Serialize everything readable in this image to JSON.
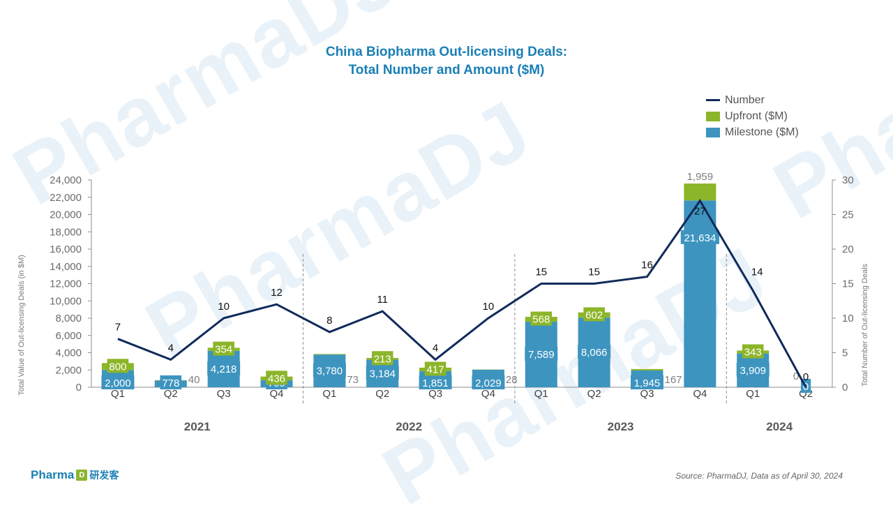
{
  "watermark": "PharmaDJ",
  "title": {
    "line1": "China Biopharma Out-licensing Deals:",
    "line2": "Total Number and Amount ($M)"
  },
  "legend": {
    "number": "Number",
    "upfront": "Upfront ($M)",
    "milestone": "Milestone ($M)"
  },
  "logo": {
    "text": "Pharma",
    "mark": "D",
    "chinese": "研发客"
  },
  "source": "Source: PharmaDJ, Data as of April 30, 2024",
  "colors": {
    "milestone": "#3d94bf",
    "upfront": "#8db52a",
    "number_line": "#102a5a",
    "title": "#1a7fb5"
  },
  "chart_data": {
    "type": "bar",
    "title": "China Biopharma Out-licensing Deals: Total Number and Amount ($M)",
    "ylabel_left": "Total Value of Out-licensing Deals (in $M)",
    "ylabel_right": "Total Number of Out-licensing Deals",
    "ylim_left": [
      0,
      24000
    ],
    "yticks_left": [
      "0",
      "2,000",
      "4,000",
      "6,000",
      "8,000",
      "10,000",
      "12,000",
      "14,000",
      "16,000",
      "18,000",
      "20,000",
      "22,000",
      "24,000"
    ],
    "ylim_right": [
      0,
      30
    ],
    "yticks_right": [
      "0",
      "5",
      "10",
      "15",
      "20",
      "25",
      "30"
    ],
    "categories": [
      "Q1",
      "Q2",
      "Q3",
      "Q4",
      "Q1",
      "Q2",
      "Q3",
      "Q4",
      "Q1",
      "Q2",
      "Q3",
      "Q4",
      "Q1",
      "Q2"
    ],
    "years": [
      {
        "label": "2021",
        "quarters": 4
      },
      {
        "label": "2022",
        "quarters": 4
      },
      {
        "label": "2023",
        "quarters": 4
      },
      {
        "label": "2024",
        "quarters": 2
      }
    ],
    "series": [
      {
        "name": "Milestone ($M)",
        "type": "stacked-bar",
        "values": [
          2000,
          778,
          4218,
          799,
          3780,
          3184,
          1851,
          2029,
          7589,
          8066,
          1945,
          21634,
          3909,
          0
        ],
        "labels": [
          "2,000",
          "778",
          "4,218",
          "799",
          "3,780",
          "3,184",
          "1,851",
          "2,029",
          "7,589",
          "8,066",
          "1,945",
          "21,634",
          "3,909",
          "0"
        ]
      },
      {
        "name": "Upfront ($M)",
        "type": "stacked-bar",
        "values": [
          800,
          40,
          354,
          436,
          73,
          213,
          417,
          28,
          568,
          602,
          167,
          1959,
          343,
          0
        ],
        "labels": [
          "800",
          "40",
          "354",
          "436",
          "73",
          "213",
          "417",
          "28",
          "568",
          "602",
          "167",
          "1,959",
          "343",
          "0"
        ]
      },
      {
        "name": "Number",
        "type": "line",
        "axis": "right",
        "values": [
          7,
          4,
          10,
          12,
          8,
          11,
          4,
          10,
          15,
          15,
          16,
          27,
          14,
          0
        ]
      }
    ],
    "legend_position": "top-right",
    "grid": false
  }
}
